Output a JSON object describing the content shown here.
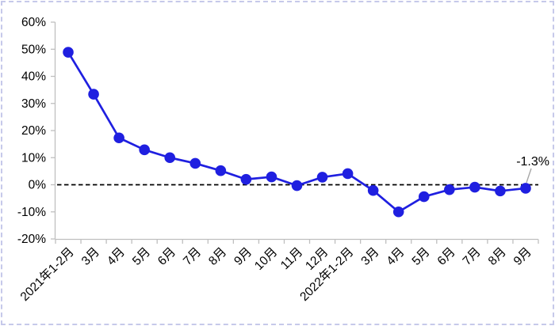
{
  "chart_data": {
    "type": "line",
    "categories": [
      "2021年1-2月",
      "3月",
      "4月",
      "5月",
      "6月",
      "7月",
      "8月",
      "9月",
      "10月",
      "11月",
      "12月",
      "2022年1-2月",
      "3月",
      "4月",
      "5月",
      "6月",
      "7月",
      "8月",
      "9月"
    ],
    "values": [
      48.9,
      33.4,
      17.3,
      12.9,
      10.0,
      7.9,
      5.2,
      2.0,
      2.9,
      -0.3,
      2.8,
      4.1,
      -2.1,
      -10.0,
      -4.4,
      -1.8,
      -0.9,
      -2.3,
      -1.3
    ],
    "title": "",
    "xlabel": "",
    "ylabel": "",
    "ylim": [
      -20,
      60
    ],
    "ytick_step": 10,
    "ytick_labels": [
      "-20%",
      "-10%",
      "0%",
      "10%",
      "20%",
      "30%",
      "40%",
      "50%",
      "60%"
    ],
    "grid": false,
    "legend": "none",
    "zero_line": {
      "style": "dashed",
      "color": "#000000"
    },
    "annotation": {
      "text": "-1.3%",
      "target_index": 18
    },
    "colors": {
      "line": "#1f1fe0",
      "marker": "#1f1fe0",
      "axis": "#bfbfbf",
      "text": "#000000",
      "leader": "#a6a6a6",
      "frame_border": "#c6c9ea",
      "background": "#ffffff"
    }
  }
}
